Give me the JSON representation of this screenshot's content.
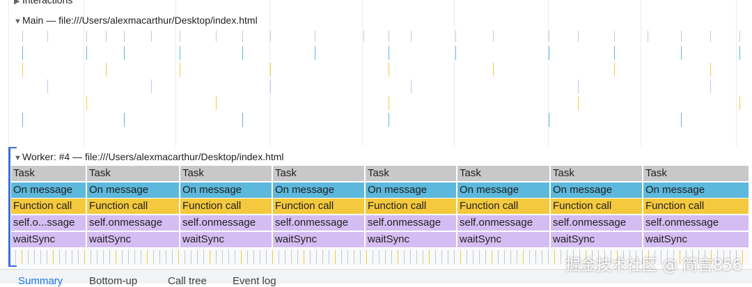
{
  "tracks": {
    "interactions_label": "Interactions",
    "main_label": "Main — file:///Users/alexmacarthur/Desktop/index.html",
    "worker_label": "Worker: #4 — file:///Users/alexmacarthur/Desktop/index.html"
  },
  "worker_rows": {
    "task": [
      "Task",
      "Task",
      "Task",
      "Task",
      "Task",
      "Task",
      "Task",
      "Task"
    ],
    "on_message": [
      "On message",
      "On message",
      "On message",
      "On message",
      "On message",
      "On message",
      "On message",
      "On message"
    ],
    "function_call": [
      "Function call",
      "Function call",
      "Function call",
      "Function call",
      "Function call",
      "Function call",
      "Function call",
      "Function call"
    ],
    "self_onmessage": [
      "self.o...ssage",
      "self.onmessage",
      "self.onmessage",
      "self.onmessage",
      "self.onmessage",
      "self.onmessage",
      "self.onmessage",
      "self.onmessage"
    ],
    "wait_sync": [
      "waitSync",
      "waitSync",
      "waitSync",
      "waitSync",
      "waitSync",
      "waitSync",
      "waitSync",
      "waitSync"
    ]
  },
  "bottom_tabs": [
    "Summary",
    "Bottom-up",
    "Call tree",
    "Event log"
  ],
  "watermark": "掘金技术社区 @ 简言856",
  "colors": {
    "task": "#c8c8c8",
    "on_message": "#5cb8dc",
    "function_call": "#f5c93e",
    "script": "#d4bdf2",
    "accent": "#1a73e8"
  }
}
